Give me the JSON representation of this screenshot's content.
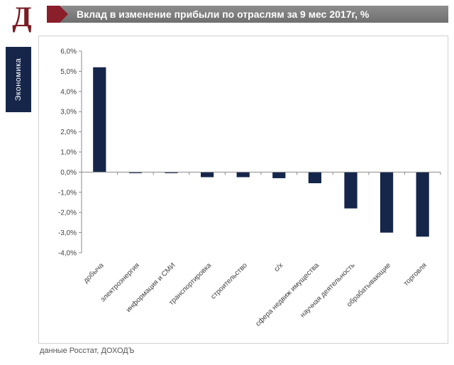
{
  "header": {
    "logo_letter": "Д",
    "title": "Вклад в изменение прибыли по отраслям за 9 мес 2017г, %"
  },
  "sidebar": {
    "label": "Экономика"
  },
  "source": "данные Росстат, ДОХОДЪ",
  "colors": {
    "bar": "#16264a",
    "logo": "#7a1c24",
    "accent": "#8b1e2b",
    "title_bar": "#7f7f7f"
  },
  "chart_data": {
    "type": "bar",
    "title": "Вклад в изменение прибыли по отраслям за 9 мес 2017г, %",
    "xlabel": "",
    "ylabel": "",
    "ylim": [
      -4,
      6
    ],
    "yticks": [
      6,
      5,
      4,
      3,
      2,
      1,
      0,
      -1,
      -2,
      -3,
      -4
    ],
    "ytick_labels": [
      "6,0%",
      "5,0%",
      "4,0%",
      "3,0%",
      "2,0%",
      "1,0%",
      "0,0%",
      "-1,0%",
      "-2,0%",
      "-3,0%",
      "-4,0%"
    ],
    "grid": false,
    "categories": [
      "добыча",
      "электроэнергия",
      "информация и СМИ",
      "транспортировка",
      "строительство",
      "с/х",
      "сфера недвиж имущества",
      "научная деятельность",
      "обрабатывающие",
      "торговля"
    ],
    "values": [
      5.2,
      -0.05,
      -0.05,
      -0.25,
      -0.25,
      -0.3,
      -0.55,
      -1.8,
      -3.0,
      -3.2
    ]
  }
}
